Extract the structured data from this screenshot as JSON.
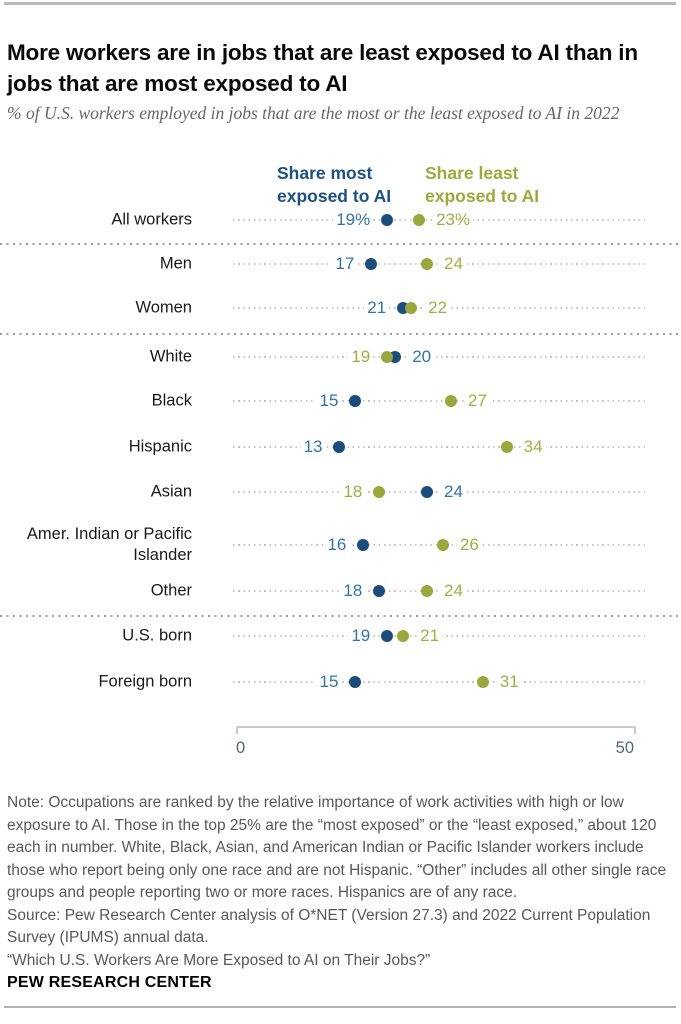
{
  "header": {
    "title": "More workers are in jobs that are least exposed to AI than in jobs that are most exposed to AI",
    "subtitle": "% of U.S. workers employed in jobs that are the most or the least exposed to AI in 2022"
  },
  "legend": {
    "most_label": "Share most exposed to AI",
    "least_label": "Share least exposed to AI"
  },
  "colors": {
    "most_dot": "#1C4C7C",
    "most_text": "#3174A8",
    "least_dot": "#99A73D",
    "least_text": "#A2AE45",
    "legend_most": "#1D5182",
    "legend_least": "#9CA93C"
  },
  "chart_data": {
    "type": "dot",
    "x_axis": {
      "min": 0,
      "max": 50,
      "tick_labels": [
        "0",
        "50"
      ]
    },
    "series_names": [
      "Share most exposed to AI",
      "Share least exposed to AI"
    ],
    "rows": [
      {
        "category": "All workers",
        "most": 19,
        "least": 23,
        "most_label": "19%",
        "least_label": "23%",
        "separator_after": true
      },
      {
        "category": "Men",
        "most": 17,
        "least": 24,
        "most_label": "17",
        "least_label": "24",
        "separator_after": false
      },
      {
        "category": "Women",
        "most": 21,
        "least": 22,
        "most_label": "21",
        "least_label": "22",
        "separator_after": true
      },
      {
        "category": "White",
        "most": 20,
        "least": 19,
        "most_label": "20",
        "least_label": "19",
        "separator_after": false
      },
      {
        "category": "Black",
        "most": 15,
        "least": 27,
        "most_label": "15",
        "least_label": "27",
        "separator_after": false
      },
      {
        "category": "Hispanic",
        "most": 13,
        "least": 34,
        "most_label": "13",
        "least_label": "34",
        "separator_after": false
      },
      {
        "category": "Asian",
        "most": 24,
        "least": 18,
        "most_label": "24",
        "least_label": "18",
        "separator_after": false
      },
      {
        "category": "Amer. Indian or Pacific Islander",
        "most": 16,
        "least": 26,
        "most_label": "16",
        "least_label": "26",
        "separator_after": false
      },
      {
        "category": "Other",
        "most": 18,
        "least": 24,
        "most_label": "18",
        "least_label": "24",
        "separator_after": true
      },
      {
        "category": "U.S. born",
        "most": 19,
        "least": 21,
        "most_label": "19",
        "least_label": "21",
        "separator_after": false
      },
      {
        "category": "Foreign born",
        "most": 15,
        "least": 31,
        "most_label": "15",
        "least_label": "31",
        "separator_after": false
      }
    ]
  },
  "axis": {
    "tick_0": "0",
    "tick_50": "50"
  },
  "footer": {
    "note": "Note: Occupations are ranked by the relative importance of work activities with high or low exposure to AI. Those in the top 25% are the “most exposed” or the “least exposed,” about 120 each in number. White, Black, Asian, and American Indian or Pacific Islander workers include those who report being only one race and are not Hispanic. “Other” includes all other single race groups and people reporting two or more races. Hispanics are of any race.",
    "source": "Source: Pew Research Center analysis of O*NET (Version 27.3) and 2022 Current Population Survey (IPUMS) annual data.",
    "quote": "“Which U.S. Workers Are More Exposed to AI on Their Jobs?”",
    "brand": "PEW RESEARCH CENTER"
  }
}
